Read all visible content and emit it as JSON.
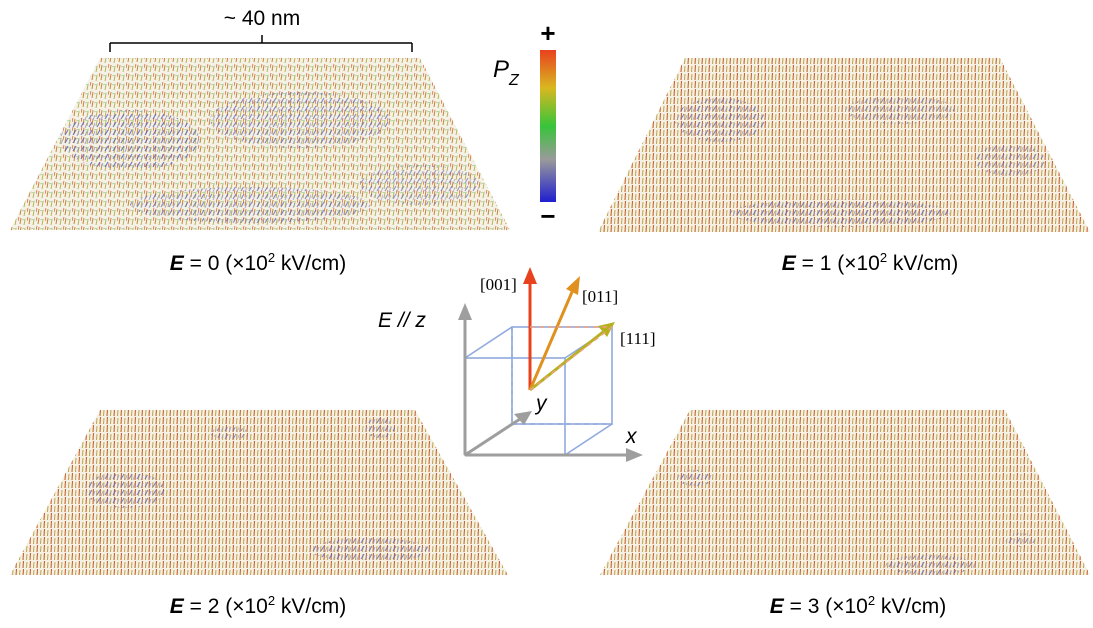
{
  "scale_bar": {
    "label": "~ 40 nm"
  },
  "colorbar": {
    "title": "P",
    "title_subscript": "Z",
    "max_label": "+",
    "min_label": "−"
  },
  "panels": [
    {
      "symbol": "E",
      "value": " = 0 (×10",
      "exponent": "2",
      "unit": " kV/cm)"
    },
    {
      "symbol": "E",
      "value": " = 1 (×10",
      "exponent": "2",
      "unit": " kV/cm)"
    },
    {
      "symbol": "E",
      "value": " = 2 (×10",
      "exponent": "2",
      "unit": " kV/cm)"
    },
    {
      "symbol": "E",
      "value": " = 3 (×10",
      "exponent": "2",
      "unit": " kV/cm)"
    }
  ],
  "axes": {
    "vertical_label": "E // z",
    "x_label": "x",
    "y_label": "y",
    "directions": [
      "[001]",
      "[011]",
      "[111]"
    ]
  }
}
